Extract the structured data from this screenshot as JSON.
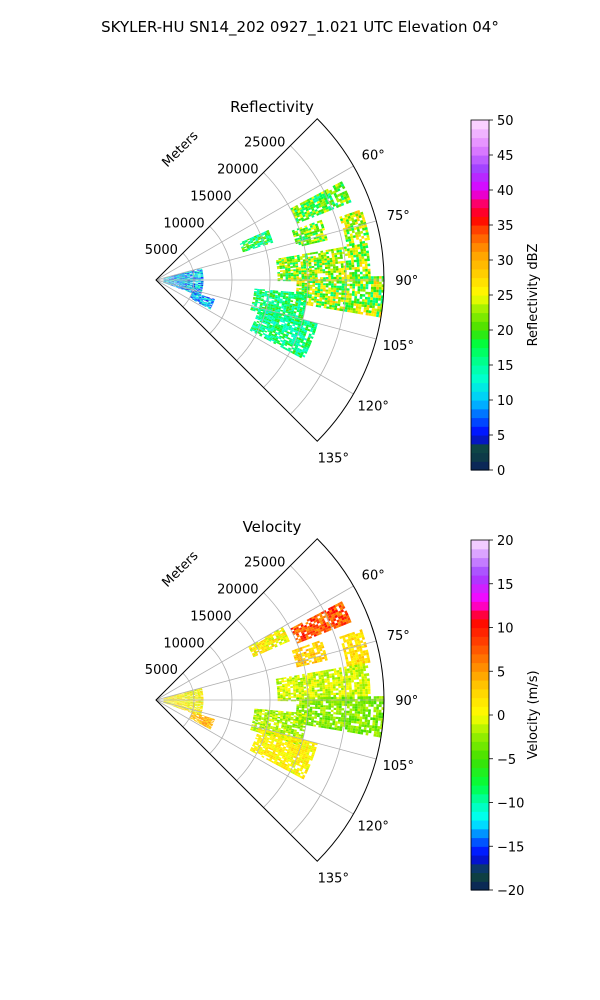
{
  "figure": {
    "suptitle": "SKYLER-HU  SN14_202  0927_1.021 UTC Elevation 04°"
  },
  "chart_data": [
    {
      "type": "heatmap",
      "subtype": "polar-ppi-sector",
      "title": "Reflectivity",
      "range_axis_label": "Meters",
      "range_ticks": [
        5000,
        10000,
        15000,
        20000,
        25000
      ],
      "range_tick_labels": [
        "5000",
        "10000",
        "15000",
        "20000",
        "25000"
      ],
      "range_max": 30000,
      "azimuth_range_deg": [
        45,
        135
      ],
      "azimuth_ticks": [
        60,
        75,
        90,
        105,
        120,
        135
      ],
      "azimuth_tick_labels": [
        "60°",
        "75°",
        "90°",
        "105°",
        "120°",
        "135°"
      ],
      "grid": true,
      "colorbar": {
        "label": "Reflectivity dBZ",
        "vmin": 0,
        "vmax": 50,
        "ticks": [
          0,
          5,
          10,
          15,
          20,
          25,
          30,
          35,
          40,
          45,
          50
        ],
        "tick_labels": [
          "0",
          "5",
          "10",
          "15",
          "20",
          "25",
          "30",
          "35",
          "40",
          "45",
          "50"
        ],
        "colormap_stops": [
          [
            0,
            "#0a1f5e"
          ],
          [
            3,
            "#0f4a3a"
          ],
          [
            5,
            "#0000ff"
          ],
          [
            8,
            "#0070ff"
          ],
          [
            10,
            "#00c8ff"
          ],
          [
            13,
            "#00ffd0"
          ],
          [
            15,
            "#00ffa0"
          ],
          [
            18,
            "#00ff40"
          ],
          [
            20,
            "#40e000"
          ],
          [
            23,
            "#a0f000"
          ],
          [
            25,
            "#ffff00"
          ],
          [
            28,
            "#ffd000"
          ],
          [
            31,
            "#ffa000"
          ],
          [
            34,
            "#ff5000"
          ],
          [
            36,
            "#ff0000"
          ],
          [
            38,
            "#ff0060"
          ],
          [
            40,
            "#e000ff"
          ],
          [
            43,
            "#a040ff"
          ],
          [
            46,
            "#e080ff"
          ],
          [
            50,
            "#ffe0ff"
          ]
        ]
      },
      "echoes": [
        {
          "az": [
            62,
            68
          ],
          "r": [
            20000,
            27500
          ],
          "v": 20,
          "spread": 6
        },
        {
          "az": [
            70,
            77
          ],
          "r": [
            19000,
            23000
          ],
          "v": 21,
          "spread": 5
        },
        {
          "az": [
            71,
            80
          ],
          "r": [
            25500,
            28500
          ],
          "v": 23,
          "spread": 6
        },
        {
          "az": [
            80,
            90
          ],
          "r": [
            16000,
            28000
          ],
          "v": 22,
          "spread": 6
        },
        {
          "az": [
            89,
            99
          ],
          "r": [
            18500,
            30000
          ],
          "v": 22,
          "spread": 7
        },
        {
          "az": [
            66,
            72
          ],
          "r": [
            12000,
            16000
          ],
          "v": 17,
          "spread": 5
        },
        {
          "az": [
            95,
            107
          ],
          "r": [
            13000,
            20000
          ],
          "v": 17,
          "spread": 4
        },
        {
          "az": [
            105,
            118
          ],
          "r": [
            14000,
            22000
          ],
          "v": 16,
          "spread": 4
        },
        {
          "az": [
            75,
            110
          ],
          "r": [
            1000,
            6000
          ],
          "v": 10,
          "spread": 6
        },
        {
          "az": [
            108,
            118
          ],
          "r": [
            5000,
            8000
          ],
          "v": 9,
          "spread": 5
        }
      ]
    },
    {
      "type": "heatmap",
      "subtype": "polar-ppi-sector",
      "title": "Velocity",
      "range_axis_label": "Meters",
      "range_ticks": [
        5000,
        10000,
        15000,
        20000,
        25000
      ],
      "range_tick_labels": [
        "5000",
        "10000",
        "15000",
        "20000",
        "25000"
      ],
      "range_max": 30000,
      "azimuth_range_deg": [
        45,
        135
      ],
      "azimuth_ticks": [
        60,
        75,
        90,
        105,
        120,
        135
      ],
      "azimuth_tick_labels": [
        "60°",
        "75°",
        "90°",
        "105°",
        "120°",
        "135°"
      ],
      "grid": true,
      "colorbar": {
        "label": "Velocity (m/s)",
        "vmin": -20,
        "vmax": 20,
        "ticks": [
          -20,
          -15,
          -10,
          -5,
          0,
          5,
          10,
          15,
          20
        ],
        "tick_labels": [
          "−20",
          "−15",
          "−10",
          "−5",
          "0",
          "5",
          "10",
          "15",
          "20"
        ],
        "colormap_stops": [
          [
            -20,
            "#0a1f5e"
          ],
          [
            -18,
            "#0f4a3a"
          ],
          [
            -16,
            "#0000ff"
          ],
          [
            -14,
            "#0070ff"
          ],
          [
            -12,
            "#00ffff"
          ],
          [
            -10,
            "#00ffb0"
          ],
          [
            -8,
            "#00ff40"
          ],
          [
            -5,
            "#40e000"
          ],
          [
            -2,
            "#a0f000"
          ],
          [
            0,
            "#ffff00"
          ],
          [
            3,
            "#ffd000"
          ],
          [
            6,
            "#ff8000"
          ],
          [
            9,
            "#ff3000"
          ],
          [
            11,
            "#ff0000"
          ],
          [
            13,
            "#ff00ff"
          ],
          [
            16,
            "#a040ff"
          ],
          [
            20,
            "#ffe0ff"
          ]
        ]
      },
      "echoes": [
        {
          "az": [
            62,
            68
          ],
          "r": [
            20000,
            27500
          ],
          "v": 8,
          "spread": 3
        },
        {
          "az": [
            60,
            66
          ],
          "r": [
            14000,
            19000
          ],
          "v": 1,
          "spread": 3
        },
        {
          "az": [
            70,
            77
          ],
          "r": [
            19000,
            23000
          ],
          "v": 3,
          "spread": 2
        },
        {
          "az": [
            71,
            80
          ],
          "r": [
            25500,
            28500
          ],
          "v": 2,
          "spread": 2
        },
        {
          "az": [
            80,
            90
          ],
          "r": [
            16000,
            28000
          ],
          "v": -1,
          "spread": 2
        },
        {
          "az": [
            89,
            99
          ],
          "r": [
            18500,
            30000
          ],
          "v": -3,
          "spread": 2
        },
        {
          "az": [
            95,
            107
          ],
          "r": [
            13000,
            20000
          ],
          "v": -2,
          "spread": 2
        },
        {
          "az": [
            105,
            118
          ],
          "r": [
            14000,
            22000
          ],
          "v": 1,
          "spread": 2
        },
        {
          "az": [
            75,
            110
          ],
          "r": [
            1000,
            6000
          ],
          "v": 1,
          "spread": 3
        },
        {
          "az": [
            108,
            118
          ],
          "r": [
            5000,
            8000
          ],
          "v": 4,
          "spread": 2
        }
      ]
    }
  ]
}
